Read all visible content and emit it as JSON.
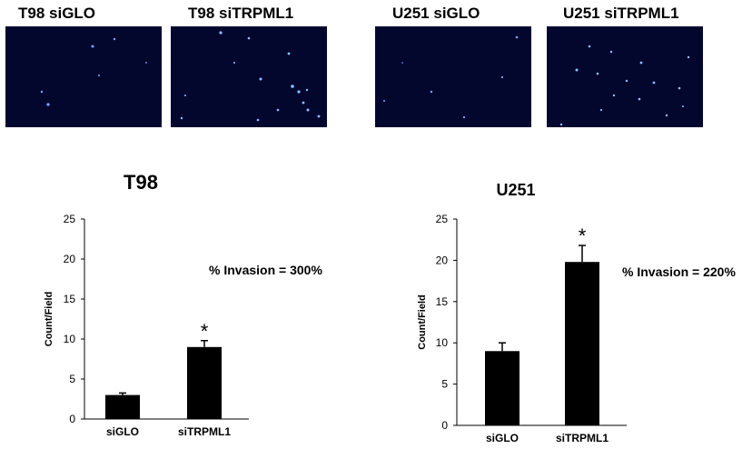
{
  "panels": [
    {
      "label": "T98 siGLO",
      "color": "#03072e"
    },
    {
      "label": "T98 siTRPML1",
      "color": "#03072e"
    },
    {
      "label": "U251 siGLO",
      "color": "#03072e"
    },
    {
      "label": "U251 siTRPML1",
      "color": "#03072e"
    }
  ],
  "chart_data": [
    {
      "type": "bar",
      "title": "T98",
      "ylabel": "Count/Field",
      "categories": [
        "siGLO",
        "siTRPML1"
      ],
      "values": [
        3.0,
        9.0
      ],
      "errors": [
        0.25,
        0.8
      ],
      "ylim": [
        0,
        25
      ],
      "yticks": [
        "0",
        "5",
        "10",
        "15",
        "20",
        "25"
      ],
      "significance": [
        "",
        "*"
      ],
      "annotation": "% Invasion = 300%",
      "bar_color": "#000000"
    },
    {
      "type": "bar",
      "title": "U251",
      "ylabel": "Count/Field",
      "categories": [
        "siGLO",
        "siTRPML1"
      ],
      "values": [
        9.0,
        19.8
      ],
      "errors": [
        1.0,
        2.0
      ],
      "ylim": [
        0,
        25
      ],
      "yticks": [
        "0",
        "5",
        "10",
        "15",
        "20",
        "25"
      ],
      "significance": [
        "",
        "*"
      ],
      "annotation": "% Invasion = 220%",
      "bar_color": "#000000"
    }
  ]
}
